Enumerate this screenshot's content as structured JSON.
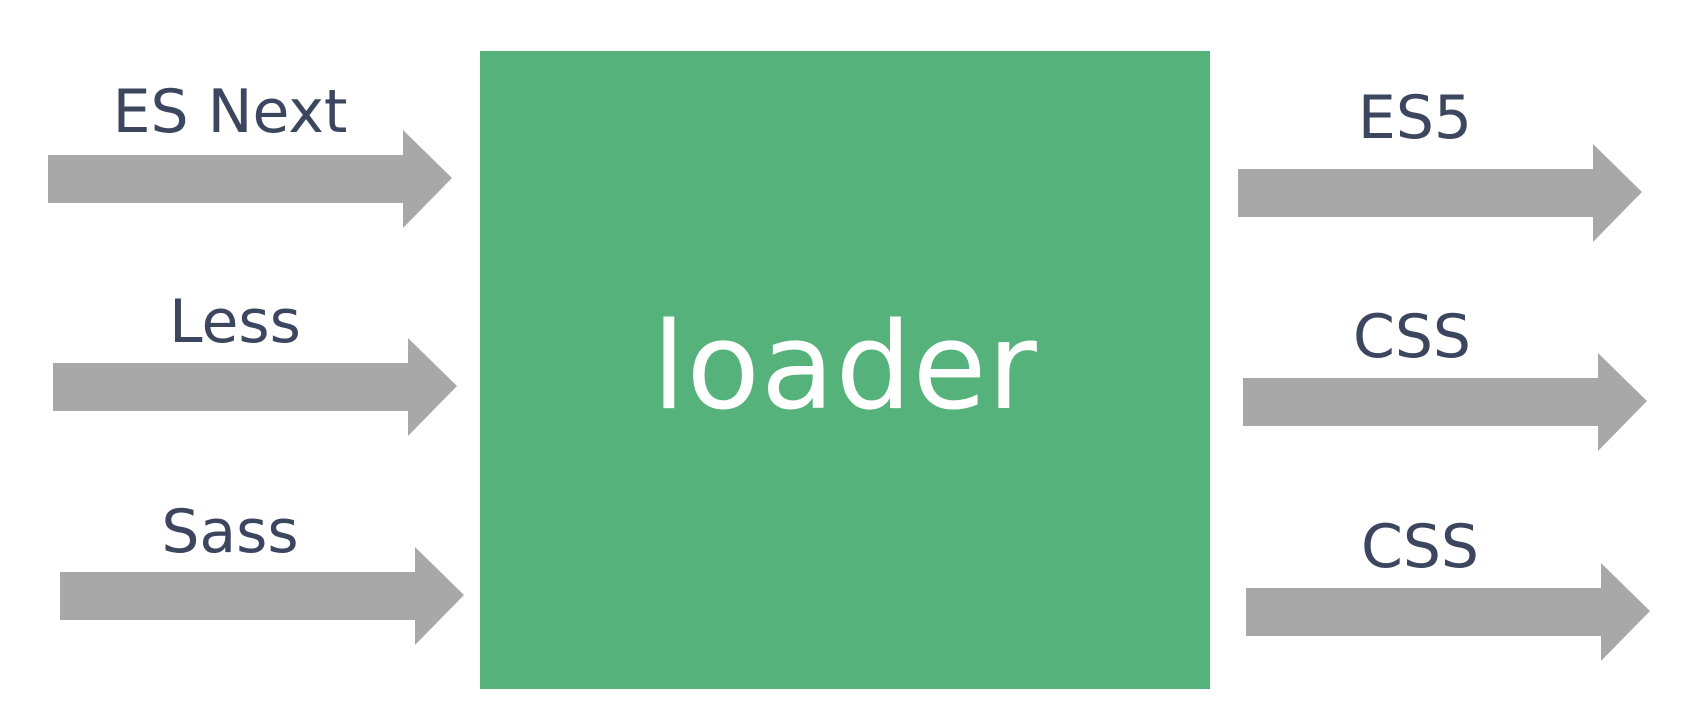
{
  "colors": {
    "box": "#55b27a",
    "arrow": "#a9a8a8",
    "text": "#3c465f"
  },
  "loader": {
    "label": "loader"
  },
  "inputs": [
    {
      "label": "ES Next"
    },
    {
      "label": "Less"
    },
    {
      "label": "Sass"
    }
  ],
  "outputs": [
    {
      "label": "ES5"
    },
    {
      "label": "CSS"
    },
    {
      "label": "CSS"
    }
  ]
}
